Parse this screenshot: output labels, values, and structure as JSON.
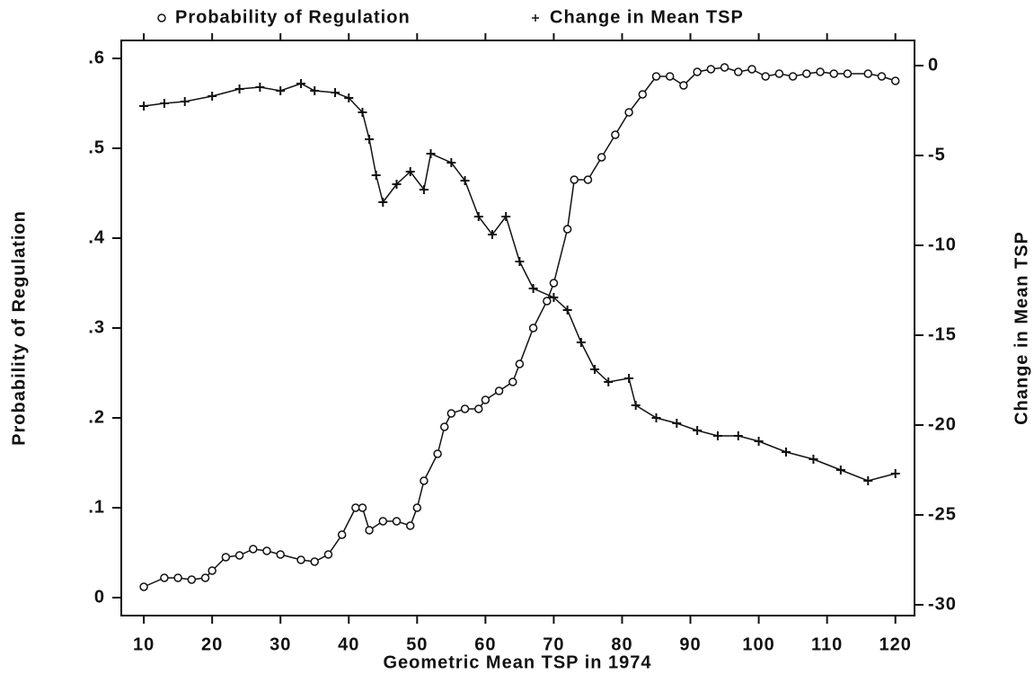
{
  "chart_data": {
    "type": "line",
    "x_label": "Geometric Mean TSP in 1974",
    "y_label": "Probability of Regulation",
    "y2_label": "Change in Mean TSP",
    "xlim": [
      6.7,
      122.8
    ],
    "xticks": [
      10,
      20,
      30,
      40,
      50,
      60,
      70,
      80,
      90,
      100,
      110,
      120
    ],
    "ylim": [
      -0.02,
      0.62
    ],
    "yticks": [
      0,
      {
        "value": 0.1,
        "label": ".1"
      },
      {
        "value": 0.2,
        "label": ".2"
      },
      {
        "value": 0.3,
        "label": ".3"
      },
      {
        "value": 0.4,
        "label": ".4"
      },
      {
        "value": 0.5,
        "label": ".5"
      },
      {
        "value": 0.6,
        "label": ".6"
      }
    ],
    "y2lim": [
      -30.6,
      1.4
    ],
    "y2ticks": [
      0,
      -5,
      -10,
      -15,
      -20,
      -25,
      -30
    ],
    "series": [
      {
        "name": "Probability of Regulation",
        "color": "#111111",
        "marker": "circle",
        "x": [
          10,
          13,
          15,
          17,
          19,
          20,
          22,
          24,
          26,
          28,
          30,
          33,
          35,
          37,
          39,
          41,
          42,
          43,
          45,
          47,
          49,
          50,
          51,
          53,
          54,
          55,
          57,
          59,
          60,
          62,
          64,
          65,
          67,
          69,
          70,
          72,
          73,
          75,
          77,
          79,
          81,
          83,
          85,
          87,
          89,
          91,
          93,
          95,
          97,
          99,
          101,
          103,
          105,
          107,
          109,
          111,
          113,
          116,
          118,
          120
        ],
        "values": [
          0.012,
          0.022,
          0.022,
          0.02,
          0.022,
          0.03,
          0.045,
          0.047,
          0.054,
          0.052,
          0.048,
          0.042,
          0.04,
          0.048,
          0.07,
          0.1,
          0.1,
          0.075,
          0.085,
          0.085,
          0.08,
          0.1,
          0.13,
          0.16,
          0.19,
          0.205,
          0.21,
          0.21,
          0.22,
          0.23,
          0.24,
          0.26,
          0.3,
          0.33,
          0.35,
          0.41,
          0.465,
          0.465,
          0.49,
          0.515,
          0.54,
          0.56,
          0.58,
          0.58,
          0.57,
          0.585,
          0.588,
          0.59,
          0.585,
          0.588,
          0.58,
          0.583,
          0.58,
          0.583,
          0.585,
          0.583,
          0.583,
          0.583,
          0.58,
          0.575
        ]
      },
      {
        "name": "Change in Mean TSP",
        "color": "#111111",
        "marker": "plus",
        "axis": "y2",
        "x": [
          10,
          13,
          16,
          20,
          24,
          27,
          30,
          33,
          35,
          38,
          40,
          42,
          43,
          44,
          45,
          47,
          49,
          51,
          52,
          55,
          57,
          59,
          61,
          63,
          65,
          67,
          70,
          72,
          74,
          76,
          78,
          81,
          82,
          85,
          88,
          91,
          94,
          97,
          100,
          104,
          108,
          112,
          116,
          120
        ],
        "values": [
          -2.25,
          -2.1,
          -2.0,
          -1.7,
          -1.3,
          -1.2,
          -1.4,
          -1.0,
          -1.4,
          -1.5,
          -1.8,
          -2.6,
          -4.1,
          -6.1,
          -7.6,
          -6.6,
          -5.9,
          -6.9,
          -4.9,
          -5.4,
          -6.4,
          -8.4,
          -9.4,
          -8.4,
          -10.9,
          -12.4,
          -12.9,
          -13.6,
          -15.4,
          -16.9,
          -17.6,
          -17.4,
          -18.9,
          -19.6,
          -19.9,
          -20.3,
          -20.6,
          -20.6,
          -20.9,
          -21.5,
          -21.9,
          -22.5,
          -23.1,
          -22.7
        ]
      }
    ]
  }
}
